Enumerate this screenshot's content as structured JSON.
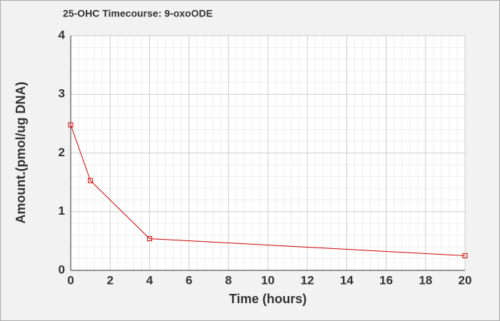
{
  "chart_data": {
    "type": "line",
    "title": "25-OHC Timecourse: 9-oxoODE",
    "x_label": "Time (hours)",
    "y_label": "Amount.(pmol/ug DNA)",
    "x": [
      0,
      1,
      4,
      20
    ],
    "series": [
      {
        "name": "9-oxoODE",
        "color": "#cc0000",
        "values": [
          2.48,
          1.53,
          0.54,
          0.25
        ]
      }
    ],
    "xlim": [
      0,
      20
    ],
    "xticks": [
      0,
      2,
      4,
      6,
      8,
      10,
      12,
      14,
      16,
      18,
      20
    ],
    "ylim": [
      0,
      4
    ],
    "yticks": [
      0,
      1,
      2,
      3,
      4
    ],
    "grid": true,
    "minor_grid": true,
    "legend": false
  }
}
